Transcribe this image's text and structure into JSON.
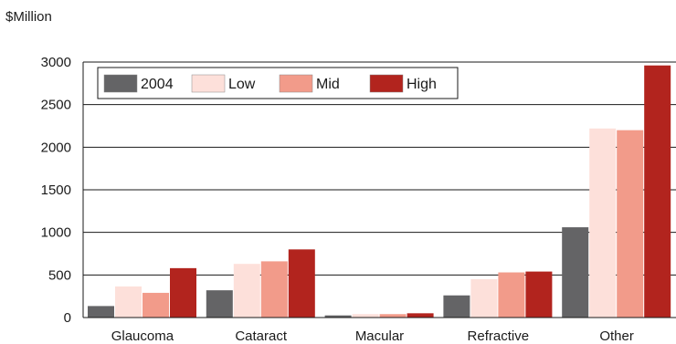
{
  "chart_data": {
    "type": "bar",
    "unit_label": "$Million",
    "categories": [
      "Glaucoma",
      "Cataract",
      "Macular",
      "Refractive",
      "Other"
    ],
    "series": [
      {
        "name": "2004",
        "color": "#646466",
        "values": [
          135,
          320,
          25,
          260,
          1060
        ]
      },
      {
        "name": "Low",
        "color": "#fde0da",
        "values": [
          365,
          630,
          40,
          450,
          2220
        ]
      },
      {
        "name": "Mid",
        "color": "#f29b8a",
        "values": [
          290,
          660,
          40,
          530,
          2200
        ]
      },
      {
        "name": "High",
        "color": "#b2241e",
        "values": [
          580,
          800,
          50,
          540,
          2960
        ]
      }
    ],
    "ylim": [
      0,
      3000
    ],
    "yticks": [
      0,
      500,
      1000,
      1500,
      2000,
      2500,
      3000
    ],
    "grid": true,
    "legend_position": "top-left"
  }
}
